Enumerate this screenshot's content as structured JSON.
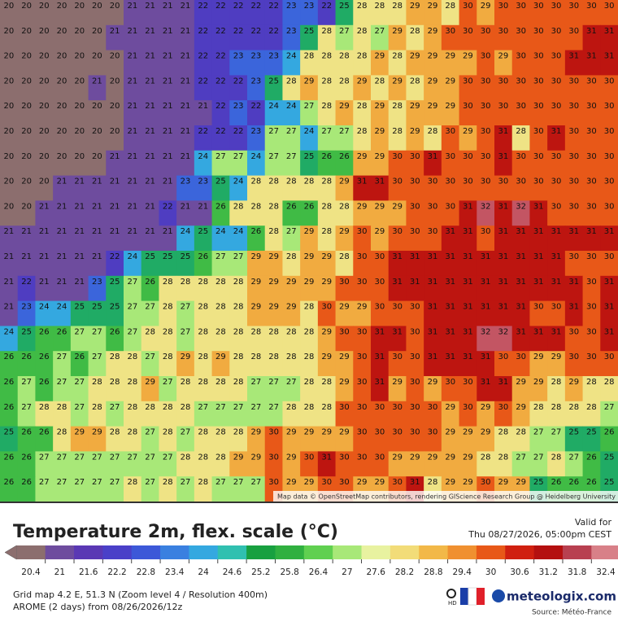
{
  "map": {
    "attribution": "Map data © OpenStreetMap contributors, rendering GIScience Research Group @ Heidelberg University",
    "grid": [
      [
        20,
        20,
        20,
        20,
        20,
        20,
        20,
        21,
        21,
        21,
        21,
        22,
        22,
        22,
        22,
        22,
        23,
        23,
        22,
        25,
        28,
        28,
        28,
        29,
        29,
        28,
        30,
        29,
        30,
        30,
        30,
        30,
        30,
        30,
        30
      ],
      [
        20,
        20,
        20,
        20,
        20,
        20,
        21,
        21,
        21,
        21,
        21,
        22,
        22,
        22,
        22,
        22,
        23,
        25,
        28,
        27,
        28,
        27,
        29,
        28,
        29,
        30,
        30,
        30,
        30,
        30,
        30,
        30,
        30,
        31,
        31
      ],
      [
        20,
        20,
        20,
        20,
        20,
        20,
        20,
        21,
        21,
        21,
        21,
        22,
        22,
        23,
        23,
        23,
        24,
        28,
        28,
        28,
        28,
        29,
        28,
        29,
        29,
        29,
        29,
        30,
        29,
        30,
        30,
        30,
        31,
        31,
        31
      ],
      [
        20,
        20,
        20,
        20,
        20,
        21,
        20,
        21,
        21,
        21,
        21,
        22,
        22,
        22,
        23,
        25,
        28,
        29,
        28,
        28,
        29,
        28,
        29,
        28,
        29,
        29,
        30,
        30,
        30,
        30,
        30,
        30,
        30,
        30,
        30
      ],
      [
        20,
        20,
        20,
        20,
        20,
        20,
        20,
        21,
        21,
        21,
        21,
        21,
        22,
        23,
        22,
        24,
        24,
        27,
        28,
        29,
        28,
        29,
        28,
        29,
        29,
        29,
        30,
        30,
        30,
        30,
        30,
        30,
        30,
        30,
        30
      ],
      [
        20,
        20,
        20,
        20,
        20,
        20,
        20,
        21,
        21,
        21,
        21,
        22,
        22,
        22,
        23,
        27,
        27,
        24,
        27,
        27,
        28,
        29,
        28,
        29,
        28,
        30,
        29,
        30,
        31,
        28,
        30,
        31,
        30,
        30,
        30
      ],
      [
        20,
        20,
        20,
        20,
        20,
        20,
        21,
        21,
        21,
        21,
        21,
        24,
        27,
        27,
        24,
        27,
        27,
        25,
        26,
        26,
        29,
        29,
        30,
        30,
        31,
        30,
        30,
        30,
        31,
        30,
        30,
        30,
        30,
        30,
        30
      ],
      [
        20,
        20,
        20,
        21,
        21,
        21,
        21,
        21,
        21,
        21,
        23,
        23,
        25,
        24,
        28,
        28,
        28,
        28,
        28,
        29,
        31,
        31,
        30,
        30,
        30,
        30,
        30,
        30,
        30,
        30,
        30,
        30,
        30,
        30,
        30
      ],
      [
        20,
        20,
        21,
        21,
        21,
        21,
        21,
        21,
        21,
        22,
        21,
        21,
        26,
        28,
        28,
        28,
        26,
        26,
        28,
        28,
        29,
        29,
        29,
        30,
        30,
        30,
        31,
        32,
        31,
        32,
        31,
        30,
        30,
        30,
        30
      ],
      [
        21,
        21,
        21,
        21,
        21,
        21,
        21,
        21,
        21,
        21,
        24,
        25,
        24,
        24,
        26,
        28,
        27,
        29,
        28,
        29,
        30,
        29,
        30,
        30,
        30,
        31,
        31,
        30,
        31,
        31,
        31,
        31,
        31,
        31,
        31
      ],
      [
        21,
        21,
        21,
        21,
        21,
        21,
        22,
        24,
        25,
        25,
        25,
        26,
        27,
        27,
        29,
        29,
        28,
        29,
        29,
        28,
        30,
        30,
        31,
        31,
        31,
        31,
        31,
        31,
        31,
        31,
        31,
        31,
        30,
        30,
        30
      ],
      [
        21,
        22,
        21,
        21,
        21,
        23,
        25,
        27,
        26,
        28,
        28,
        28,
        28,
        28,
        29,
        29,
        29,
        29,
        29,
        30,
        30,
        30,
        31,
        31,
        31,
        31,
        31,
        31,
        31,
        31,
        31,
        31,
        31,
        30,
        31
      ],
      [
        21,
        23,
        24,
        24,
        25,
        25,
        25,
        27,
        27,
        28,
        27,
        28,
        28,
        28,
        29,
        29,
        29,
        28,
        30,
        29,
        29,
        30,
        30,
        30,
        31,
        31,
        31,
        31,
        31,
        31,
        30,
        30,
        31,
        30,
        31
      ],
      [
        24,
        25,
        26,
        26,
        27,
        27,
        26,
        27,
        28,
        28,
        27,
        28,
        28,
        28,
        28,
        28,
        28,
        28,
        29,
        30,
        30,
        31,
        31,
        30,
        31,
        31,
        31,
        32,
        32,
        31,
        31,
        31,
        30,
        30,
        31
      ],
      [
        26,
        26,
        26,
        27,
        26,
        27,
        28,
        28,
        27,
        28,
        29,
        28,
        29,
        28,
        28,
        28,
        28,
        28,
        29,
        29,
        30,
        31,
        30,
        30,
        31,
        31,
        31,
        31,
        30,
        30,
        29,
        29,
        30,
        30,
        30
      ],
      [
        26,
        27,
        26,
        27,
        27,
        28,
        28,
        28,
        29,
        27,
        28,
        28,
        28,
        28,
        27,
        27,
        27,
        28,
        28,
        29,
        30,
        31,
        29,
        30,
        29,
        30,
        30,
        31,
        31,
        29,
        29,
        28,
        29,
        28,
        28
      ],
      [
        26,
        27,
        28,
        28,
        27,
        28,
        27,
        28,
        28,
        28,
        28,
        27,
        27,
        27,
        27,
        27,
        28,
        28,
        28,
        30,
        30,
        30,
        30,
        30,
        30,
        29,
        30,
        29,
        30,
        29,
        28,
        28,
        28,
        28,
        27
      ],
      [
        25,
        26,
        26,
        28,
        29,
        29,
        28,
        28,
        27,
        28,
        27,
        28,
        28,
        28,
        29,
        30,
        29,
        29,
        29,
        29,
        30,
        30,
        30,
        30,
        30,
        29,
        29,
        29,
        28,
        28,
        27,
        27,
        25,
        25,
        26
      ],
      [
        26,
        26,
        27,
        27,
        27,
        27,
        27,
        27,
        27,
        27,
        28,
        28,
        28,
        29,
        29,
        30,
        29,
        30,
        31,
        30,
        30,
        30,
        29,
        29,
        29,
        29,
        29,
        28,
        28,
        27,
        27,
        28,
        27,
        26,
        25
      ],
      [
        26,
        26,
        27,
        27,
        27,
        27,
        27,
        28,
        27,
        28,
        27,
        28,
        27,
        27,
        27,
        30,
        29,
        29,
        30,
        30,
        29,
        29,
        30,
        31,
        28,
        29,
        29,
        30,
        29,
        29,
        25,
        26,
        26,
        26,
        25
      ]
    ]
  },
  "legend": {
    "title": "Temperature 2m, flex. scale (°C)",
    "ticks": [
      20.4,
      21,
      21.6,
      22.2,
      22.8,
      23.4,
      24,
      24.6,
      25.2,
      25.8,
      26.4,
      27,
      27.6,
      28.2,
      28.8,
      29.4,
      30,
      30.6,
      31.2,
      31.8,
      32.4
    ],
    "colors": [
      "#8c6e6e",
      "#6e4c9e",
      "#5a38b4",
      "#4a40c8",
      "#3c58d8",
      "#3a80e0",
      "#34a8e0",
      "#30c0b0",
      "#18a040",
      "#30b040",
      "#60d050",
      "#a8e878",
      "#e8f2a0",
      "#f2dc78",
      "#f2b848",
      "#f09030",
      "#e85818",
      "#d02010",
      "#b41010",
      "#b84050",
      "#d88088"
    ]
  },
  "footer": {
    "valid_label": "Valid for",
    "valid_time": "Thu 08/27/2026, 05:00pm CEST",
    "grid_info": "Grid map 4.2 E, 51.3 N (Zoom level 4 / Resolution 400m)",
    "model_info": "AROME (2 days) from 08/26/2026/12z",
    "hd": "HD",
    "brand": "meteologix.com",
    "source": "Source: Météo-France"
  }
}
